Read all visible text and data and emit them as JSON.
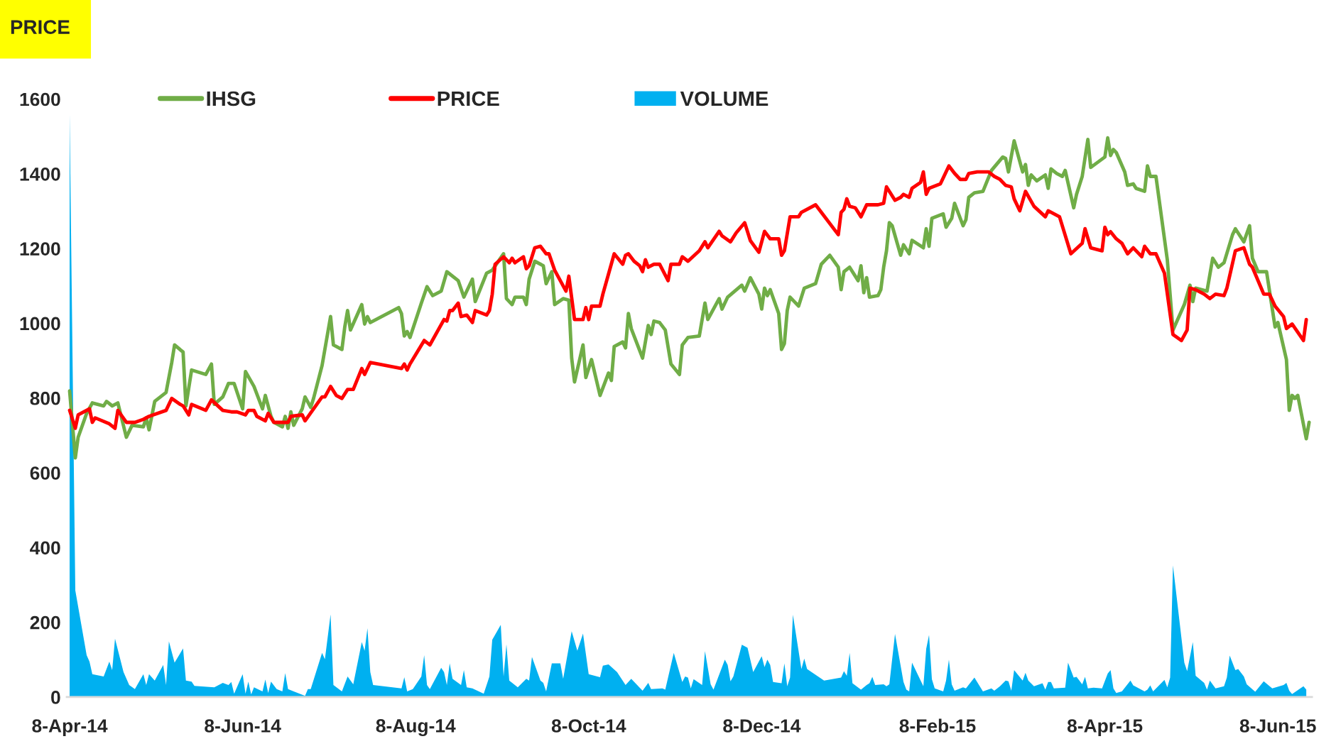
{
  "chart_data": {
    "type": "line",
    "title": "PRICE",
    "xlim": [
      "2014-04-07",
      "2015-06-20"
    ],
    "xticks": [
      {
        "value": "2014-04-08",
        "label": "8-Apr-14"
      },
      {
        "value": "2014-06-08",
        "label": "8-Jun-14"
      },
      {
        "value": "2014-08-08",
        "label": "8-Aug-14"
      },
      {
        "value": "2014-10-08",
        "label": "8-Oct-14"
      },
      {
        "value": "2014-12-08",
        "label": "8-Dec-14"
      },
      {
        "value": "2015-02-08",
        "label": "8-Feb-15"
      },
      {
        "value": "2015-04-08",
        "label": "8-Apr-15"
      },
      {
        "value": "2015-06-08",
        "label": "8-Jun-15"
      }
    ],
    "ylim": [
      0,
      1600
    ],
    "yticks": [
      0,
      200,
      400,
      600,
      800,
      1000,
      1200,
      1400,
      1600
    ],
    "grid": false,
    "legend": "top left",
    "series": [
      {
        "name": "IHSG",
        "color": "#70ad47",
        "x": [
          "2014-04-08",
          "2014-04-10",
          "2014-04-11",
          "2014-04-14",
          "2014-04-16",
          "2014-04-20",
          "2014-04-21",
          "2014-04-23",
          "2014-04-25",
          "2014-04-28",
          "2014-04-30",
          "2014-05-04",
          "2014-05-05",
          "2014-05-06",
          "2014-05-08",
          "2014-05-12",
          "2014-05-14",
          "2014-05-15",
          "2014-05-18",
          "2014-05-19",
          "2014-05-21",
          "2014-05-26",
          "2014-05-28",
          "2014-05-29",
          "2014-06-01",
          "2014-06-03",
          "2014-06-05",
          "2014-06-08",
          "2014-06-09",
          "2014-06-12",
          "2014-06-15",
          "2014-06-16",
          "2014-06-18",
          "2014-06-19",
          "2014-06-22",
          "2014-06-23",
          "2014-06-24",
          "2014-06-25",
          "2014-06-26",
          "2014-06-29",
          "2014-06-30",
          "2014-07-02",
          "2014-07-03",
          "2014-07-06",
          "2014-07-09",
          "2014-07-10",
          "2014-07-13",
          "2014-07-14",
          "2014-07-15",
          "2014-07-16",
          "2014-07-20",
          "2014-07-21",
          "2014-07-22",
          "2014-07-23",
          "2014-08-02",
          "2014-08-03",
          "2014-08-04",
          "2014-08-05",
          "2014-08-06",
          "2014-08-10",
          "2014-08-12",
          "2014-08-14",
          "2014-08-17",
          "2014-08-19",
          "2014-08-23",
          "2014-08-25",
          "2014-08-28",
          "2014-08-29",
          "2014-09-02",
          "2014-09-04",
          "2014-09-08",
          "2014-09-09",
          "2014-09-11",
          "2014-09-12",
          "2014-09-15",
          "2014-09-16",
          "2014-09-17",
          "2014-09-19",
          "2014-09-22",
          "2014-09-23",
          "2014-09-25",
          "2014-09-26",
          "2014-09-29",
          "2014-10-01",
          "2014-10-02",
          "2014-10-03",
          "2014-10-06",
          "2014-10-07",
          "2014-10-09",
          "2014-10-12",
          "2014-10-15",
          "2014-10-16",
          "2014-10-17",
          "2014-10-20",
          "2014-10-21",
          "2014-10-22",
          "2014-10-23",
          "2014-10-27",
          "2014-10-29",
          "2014-10-30",
          "2014-10-31",
          "2014-11-02",
          "2014-11-04",
          "2014-11-06",
          "2014-11-09",
          "2014-11-10",
          "2014-11-12",
          "2014-11-16",
          "2014-11-18",
          "2014-11-19",
          "2014-11-23",
          "2014-11-24",
          "2014-11-26",
          "2014-12-01",
          "2014-12-02",
          "2014-12-04",
          "2014-12-07",
          "2014-12-08",
          "2014-12-09",
          "2014-12-10",
          "2014-12-11",
          "2014-12-14",
          "2014-12-15",
          "2014-12-16",
          "2014-12-17",
          "2014-12-18",
          "2014-12-21",
          "2014-12-23",
          "2014-12-27",
          "2014-12-29",
          "2015-01-01",
          "2015-01-04",
          "2015-01-05",
          "2015-01-06",
          "2015-01-08",
          "2015-01-11",
          "2015-01-12",
          "2015-01-13",
          "2015-01-14",
          "2015-01-15",
          "2015-01-18",
          "2015-01-19",
          "2015-01-20",
          "2015-01-21",
          "2015-01-22",
          "2015-01-23",
          "2015-01-26",
          "2015-01-27",
          "2015-01-29",
          "2015-01-30",
          "2015-02-03",
          "2015-02-04",
          "2015-02-05",
          "2015-02-06",
          "2015-02-10",
          "2015-02-11",
          "2015-02-13",
          "2015-02-14",
          "2015-02-17",
          "2015-02-18",
          "2015-02-19",
          "2015-02-21",
          "2015-02-24",
          "2015-02-27",
          "2015-03-03",
          "2015-03-04",
          "2015-03-05",
          "2015-03-07",
          "2015-03-10",
          "2015-03-11",
          "2015-03-12",
          "2015-03-13",
          "2015-03-15",
          "2015-03-18",
          "2015-03-19",
          "2015-03-20",
          "2015-03-22",
          "2015-03-24",
          "2015-03-25",
          "2015-03-28",
          "2015-03-29",
          "2015-03-31",
          "2015-04-02",
          "2015-04-03",
          "2015-04-08",
          "2015-04-09",
          "2015-04-10",
          "2015-04-11",
          "2015-04-12",
          "2015-04-15",
          "2015-04-16",
          "2015-04-18",
          "2015-04-19",
          "2015-04-22",
          "2015-04-23",
          "2015-04-24",
          "2015-04-26",
          "2015-04-30",
          "2015-05-02",
          "2015-05-06",
          "2015-05-08",
          "2015-05-09",
          "2015-05-10",
          "2015-05-14",
          "2015-05-16",
          "2015-05-18",
          "2015-05-20",
          "2015-05-23",
          "2015-05-24",
          "2015-05-27",
          "2015-05-29",
          "2015-05-30",
          "2015-06-01",
          "2015-06-04",
          "2015-06-07",
          "2015-06-08",
          "2015-06-11",
          "2015-06-12",
          "2015-06-13",
          "2015-06-14",
          "2015-06-15",
          "2015-06-18",
          "2015-06-19"
        ],
        "values": [
          819,
          640,
          695,
          759,
          787,
          779,
          791,
          779,
          787,
          695,
          727,
          723,
          747,
          715,
          791,
          815,
          895,
          942,
          923,
          779,
          875,
          863,
          891,
          783,
          803,
          839,
          839,
          771,
          871,
          831,
          771,
          807,
          751,
          735,
          723,
          751,
          719,
          763,
          727,
          771,
          803,
          775,
          799,
          887,
          1018,
          942,
          930,
          990,
          1034,
          982,
          1050,
          998,
          1018,
          1002,
          1042,
          1026,
          966,
          978,
          962,
          1054,
          1098,
          1074,
          1086,
          1138,
          1114,
          1070,
          1118,
          1058,
          1134,
          1142,
          1186,
          1066,
          1050,
          1070,
          1070,
          1050,
          1118,
          1166,
          1154,
          1106,
          1138,
          1050,
          1066,
          1062,
          907,
          843,
          942,
          855,
          903,
          807,
          867,
          847,
          938,
          950,
          934,
          1026,
          986,
          907,
          994,
          970,
          1006,
          1002,
          982,
          891,
          863,
          942,
          962,
          966,
          1054,
          1010,
          1066,
          1038,
          1070,
          1102,
          1086,
          1122,
          1078,
          1038,
          1094,
          1074,
          1090,
          1026,
          930,
          946,
          1034,
          1070,
          1046,
          1094,
          1106,
          1158,
          1182,
          1150,
          1090,
          1138,
          1150,
          1114,
          1154,
          1082,
          1122,
          1070,
          1074,
          1090,
          1150,
          1194,
          1269,
          1261,
          1182,
          1210,
          1186,
          1222,
          1202,
          1253,
          1206,
          1281,
          1293,
          1257,
          1281,
          1321,
          1261,
          1277,
          1337,
          1349,
          1353,
          1409,
          1445,
          1441,
          1405,
          1488,
          1405,
          1425,
          1369,
          1397,
          1381,
          1397,
          1361,
          1413,
          1401,
          1393,
          1409,
          1309,
          1345,
          1393,
          1492,
          1417,
          1445,
          1496,
          1449,
          1465,
          1457,
          1405,
          1369,
          1373,
          1361,
          1353,
          1421,
          1393,
          1393,
          1170,
          982,
          1050,
          1102,
          1058,
          1094,
          1086,
          1174,
          1150,
          1162,
          1237,
          1253,
          1218,
          1261,
          1174,
          1138,
          1138,
          990,
          1002,
          903,
          767,
          807,
          799,
          807,
          691,
          735
        ]
      },
      {
        "name": "PRICE",
        "color": "#ff0000",
        "x": [
          "2014-04-08",
          "2014-04-10",
          "2014-04-11",
          "2014-04-15",
          "2014-04-16",
          "2014-04-17",
          "2014-04-22",
          "2014-04-24",
          "2014-04-25",
          "2014-04-28",
          "2014-05-01",
          "2014-05-04",
          "2014-05-06",
          "2014-05-12",
          "2014-05-14",
          "2014-05-17",
          "2014-05-18",
          "2014-05-20",
          "2014-05-21",
          "2014-05-26",
          "2014-05-28",
          "2014-06-01",
          "2014-06-04",
          "2014-06-06",
          "2014-06-09",
          "2014-06-10",
          "2014-06-12",
          "2014-06-13",
          "2014-06-16",
          "2014-06-17",
          "2014-06-19",
          "2014-06-24",
          "2014-06-25",
          "2014-06-29",
          "2014-06-30",
          "2014-07-06",
          "2014-07-07",
          "2014-07-09",
          "2014-07-11",
          "2014-07-13",
          "2014-07-15",
          "2014-07-17",
          "2014-07-20",
          "2014-07-21",
          "2014-07-23",
          "2014-08-03",
          "2014-08-04",
          "2014-08-05",
          "2014-08-06",
          "2014-08-11",
          "2014-08-13",
          "2014-08-18",
          "2014-08-19",
          "2014-08-20",
          "2014-08-21",
          "2014-08-23",
          "2014-08-24",
          "2014-08-26",
          "2014-08-28",
          "2014-08-29",
          "2014-09-02",
          "2014-09-03",
          "2014-09-04",
          "2014-09-05",
          "2014-09-08",
          "2014-09-10",
          "2014-09-11",
          "2014-09-12",
          "2014-09-15",
          "2014-09-16",
          "2014-09-17",
          "2014-09-19",
          "2014-09-21",
          "2014-09-23",
          "2014-09-24",
          "2014-09-26",
          "2014-09-30",
          "2014-10-01",
          "2014-10-03",
          "2014-10-06",
          "2014-10-07",
          "2014-10-08",
          "2014-10-09",
          "2014-10-12",
          "2014-10-13",
          "2014-10-17",
          "2014-10-20",
          "2014-10-21",
          "2014-10-22",
          "2014-10-24",
          "2014-10-26",
          "2014-10-27",
          "2014-10-28",
          "2014-10-29",
          "2014-10-31",
          "2014-11-02",
          "2014-11-05",
          "2014-11-06",
          "2014-11-09",
          "2014-11-10",
          "2014-11-12",
          "2014-11-16",
          "2014-11-18",
          "2014-11-19",
          "2014-11-23",
          "2014-11-24",
          "2014-11-27",
          "2014-11-29",
          "2014-12-02",
          "2014-12-04",
          "2014-12-07",
          "2014-12-09",
          "2014-12-11",
          "2014-12-14",
          "2014-12-15",
          "2014-12-16",
          "2014-12-18",
          "2014-12-21",
          "2014-12-22",
          "2014-12-27",
          "2014-12-29",
          "2015-01-04",
          "2015-01-05",
          "2015-01-06",
          "2015-01-07",
          "2015-01-08",
          "2015-01-10",
          "2015-01-12",
          "2015-01-14",
          "2015-01-18",
          "2015-01-20",
          "2015-01-21",
          "2015-01-24",
          "2015-01-26",
          "2015-01-27",
          "2015-01-29",
          "2015-01-30",
          "2015-02-02",
          "2015-02-03",
          "2015-02-04",
          "2015-02-05",
          "2015-02-09",
          "2015-02-12",
          "2015-02-14",
          "2015-02-16",
          "2015-02-18",
          "2015-02-19",
          "2015-02-22",
          "2015-02-26",
          "2015-02-28",
          "2015-03-02",
          "2015-03-04",
          "2015-03-06",
          "2015-03-07",
          "2015-03-09",
          "2015-03-11",
          "2015-03-14",
          "2015-03-18",
          "2015-03-19",
          "2015-03-23",
          "2015-03-27",
          "2015-03-31",
          "2015-04-01",
          "2015-04-03",
          "2015-04-07",
          "2015-04-08",
          "2015-04-09",
          "2015-04-10",
          "2015-04-12",
          "2015-04-14",
          "2015-04-16",
          "2015-04-18",
          "2015-04-21",
          "2015-04-22",
          "2015-04-24",
          "2015-04-26",
          "2015-04-29",
          "2015-05-02",
          "2015-05-05",
          "2015-05-07",
          "2015-05-08",
          "2015-05-10",
          "2015-05-13",
          "2015-05-15",
          "2015-05-17",
          "2015-05-20",
          "2015-05-21",
          "2015-05-24",
          "2015-05-27",
          "2015-05-29",
          "2015-05-30",
          "2015-06-03",
          "2015-06-05",
          "2015-06-07",
          "2015-06-10",
          "2015-06-11",
          "2015-06-13",
          "2015-06-17",
          "2015-06-18"
        ],
        "values": [
          767,
          719,
          755,
          771,
          735,
          747,
          731,
          719,
          767,
          735,
          735,
          743,
          751,
          767,
          799,
          783,
          779,
          755,
          783,
          767,
          795,
          767,
          763,
          763,
          755,
          767,
          767,
          751,
          739,
          759,
          735,
          735,
          751,
          755,
          739,
          803,
          803,
          831,
          807,
          799,
          823,
          823,
          879,
          863,
          895,
          879,
          891,
          875,
          891,
          954,
          942,
          1010,
          1006,
          1034,
          1034,
          1054,
          1018,
          1022,
          1002,
          1034,
          1022,
          1034,
          1078,
          1158,
          1178,
          1162,
          1174,
          1162,
          1178,
          1146,
          1154,
          1202,
          1206,
          1186,
          1186,
          1142,
          1086,
          1126,
          1010,
          1010,
          1042,
          1010,
          1046,
          1046,
          1078,
          1186,
          1158,
          1182,
          1186,
          1166,
          1154,
          1138,
          1170,
          1150,
          1158,
          1158,
          1114,
          1158,
          1158,
          1178,
          1166,
          1194,
          1218,
          1202,
          1246,
          1234,
          1218,
          1242,
          1269,
          1221,
          1190,
          1246,
          1226,
          1226,
          1182,
          1194,
          1285,
          1285,
          1297,
          1317,
          1297,
          1237,
          1297,
          1305,
          1333,
          1313,
          1309,
          1285,
          1317,
          1317,
          1321,
          1365,
          1329,
          1337,
          1345,
          1337,
          1361,
          1377,
          1405,
          1345,
          1361,
          1373,
          1421,
          1401,
          1385,
          1385,
          1401,
          1405,
          1405,
          1393,
          1385,
          1369,
          1365,
          1333,
          1301,
          1353,
          1313,
          1285,
          1301,
          1285,
          1186,
          1214,
          1253,
          1202,
          1194,
          1257,
          1237,
          1245,
          1226,
          1214,
          1186,
          1202,
          1178,
          1206,
          1186,
          1186,
          1134,
          970,
          954,
          982,
          1094,
          1090,
          1078,
          1066,
          1078,
          1074,
          1094,
          1194,
          1202,
          1158,
          1150,
          1078,
          1078,
          1046,
          1018,
          986,
          998,
          954,
          1010
        ]
      },
      {
        "name": "VOLUME",
        "color": "#00b0f0",
        "type": "area",
        "x": [
          "2014-04-08",
          "2014-04-10",
          "2014-04-14",
          "2014-04-15",
          "2014-04-16",
          "2014-04-20",
          "2014-04-22",
          "2014-04-23",
          "2014-04-24",
          "2014-04-27",
          "2014-04-29",
          "2014-05-01",
          "2014-05-04",
          "2014-05-05",
          "2014-05-06",
          "2014-05-08",
          "2014-05-11",
          "2014-05-12",
          "2014-05-13",
          "2014-05-15",
          "2014-05-18",
          "2014-05-19",
          "2014-05-21",
          "2014-05-22",
          "2014-05-29",
          "2014-06-01",
          "2014-06-03",
          "2014-06-04",
          "2014-06-05",
          "2014-06-08",
          "2014-06-09",
          "2014-06-10",
          "2014-06-11",
          "2014-06-12",
          "2014-06-15",
          "2014-06-16",
          "2014-06-17",
          "2014-06-18",
          "2014-06-20",
          "2014-06-22",
          "2014-06-23",
          "2014-06-24",
          "2014-06-26",
          "2014-06-30",
          "2014-07-01",
          "2014-07-02",
          "2014-07-06",
          "2014-07-07",
          "2014-07-09",
          "2014-07-10",
          "2014-07-13",
          "2014-07-15",
          "2014-07-17",
          "2014-07-20",
          "2014-07-21",
          "2014-07-22",
          "2014-07-23",
          "2014-07-24",
          "2014-08-03",
          "2014-08-04",
          "2014-08-05",
          "2014-08-07",
          "2014-08-10",
          "2014-08-11",
          "2014-08-12",
          "2014-08-13",
          "2014-08-17",
          "2014-08-18",
          "2014-08-19",
          "2014-08-20",
          "2014-08-21",
          "2014-08-24",
          "2014-08-25",
          "2014-08-26",
          "2014-08-28",
          "2014-09-01",
          "2014-09-03",
          "2014-09-04",
          "2014-09-07",
          "2014-09-08",
          "2014-09-09",
          "2014-09-10",
          "2014-09-13",
          "2014-09-16",
          "2014-09-17",
          "2014-09-18",
          "2014-09-21",
          "2014-09-22",
          "2014-09-23",
          "2014-09-25",
          "2014-09-28",
          "2014-09-29",
          "2014-10-02",
          "2014-10-04",
          "2014-10-06",
          "2014-10-08",
          "2014-10-12",
          "2014-10-13",
          "2014-10-15",
          "2014-10-18",
          "2014-10-21",
          "2014-10-23",
          "2014-10-27",
          "2014-10-29",
          "2014-10-30",
          "2014-11-03",
          "2014-11-04",
          "2014-11-07",
          "2014-11-10",
          "2014-11-11",
          "2014-11-12",
          "2014-11-13",
          "2014-11-14",
          "2014-11-17",
          "2014-11-18",
          "2014-11-20",
          "2014-11-21",
          "2014-11-25",
          "2014-11-26",
          "2014-11-27",
          "2014-11-28",
          "2014-12-01",
          "2014-12-03",
          "2014-12-05",
          "2014-12-08",
          "2014-12-09",
          "2014-12-10",
          "2014-12-11",
          "2014-12-12",
          "2014-12-15",
          "2014-12-16",
          "2014-12-17",
          "2014-12-18",
          "2014-12-19",
          "2014-12-22",
          "2014-12-23",
          "2014-12-24",
          "2014-12-30",
          "2015-01-05",
          "2015-01-06",
          "2015-01-07",
          "2015-01-08",
          "2015-01-09",
          "2015-01-12",
          "2015-01-14",
          "2015-01-15",
          "2015-01-16",
          "2015-01-17",
          "2015-01-20",
          "2015-01-21",
          "2015-01-22",
          "2015-01-24",
          "2015-01-27",
          "2015-01-28",
          "2015-01-29",
          "2015-01-30",
          "2015-02-03",
          "2015-02-04",
          "2015-02-05",
          "2015-02-06",
          "2015-02-07",
          "2015-02-10",
          "2015-02-11",
          "2015-02-12",
          "2015-02-13",
          "2015-02-14",
          "2015-02-17",
          "2015-02-18",
          "2015-02-21",
          "2015-02-24",
          "2015-02-27",
          "2015-02-28",
          "2015-03-02",
          "2015-03-04",
          "2015-03-05",
          "2015-03-06",
          "2015-03-07",
          "2015-03-10",
          "2015-03-11",
          "2015-03-12",
          "2015-03-14",
          "2015-03-17",
          "2015-03-18",
          "2015-03-19",
          "2015-03-20",
          "2015-03-21",
          "2015-03-25",
          "2015-03-26",
          "2015-03-28",
          "2015-03-29",
          "2015-03-31",
          "2015-04-01",
          "2015-04-02",
          "2015-04-04",
          "2015-04-07",
          "2015-04-09",
          "2015-04-10",
          "2015-04-11",
          "2015-04-12",
          "2015-04-14",
          "2015-04-17",
          "2015-04-18",
          "2015-04-22",
          "2015-04-23",
          "2015-04-24",
          "2015-04-25",
          "2015-04-29",
          "2015-04-30",
          "2015-05-01",
          "2015-05-02",
          "2015-05-06",
          "2015-05-07",
          "2015-05-09",
          "2015-05-10",
          "2015-05-13",
          "2015-05-14",
          "2015-05-15",
          "2015-05-17",
          "2015-05-20",
          "2015-05-21",
          "2015-05-22",
          "2015-05-24",
          "2015-05-25",
          "2015-05-27",
          "2015-05-28",
          "2015-05-31",
          "2015-06-03",
          "2015-06-06",
          "2015-06-10",
          "2015-06-11",
          "2015-06-12",
          "2015-06-13",
          "2015-06-17",
          "2015-06-18"
        ],
        "values": [
          1560,
          285,
          112,
          95,
          61,
          55,
          95,
          72,
          156,
          67,
          32,
          21,
          61,
          32,
          61,
          44,
          86,
          32,
          149,
          92,
          130,
          44,
          41,
          30,
          26,
          38,
          32,
          40,
          9,
          61,
          9,
          41,
          7,
          26,
          15,
          47,
          11,
          41,
          21,
          15,
          64,
          21,
          15,
          3,
          21,
          21,
          118,
          101,
          221,
          32,
          15,
          55,
          34,
          147,
          124,
          184,
          67,
          32,
          23,
          53,
          15,
          21,
          55,
          112,
          32,
          21,
          78,
          67,
          32,
          90,
          49,
          32,
          72,
          26,
          23,
          9,
          55,
          153,
          193,
          55,
          141,
          44,
          26,
          49,
          44,
          107,
          44,
          38,
          15,
          90,
          90,
          49,
          176,
          124,
          170,
          61,
          53,
          84,
          87,
          67,
          32,
          49,
          17,
          38,
          21,
          23,
          20,
          118,
          40,
          55,
          52,
          23,
          48,
          32,
          123,
          34,
          20,
          100,
          86,
          42,
          55,
          140,
          132,
          67,
          109,
          80,
          100,
          86,
          40,
          37,
          90,
          29,
          52,
          220,
          75,
          103,
          75,
          44,
          52,
          69,
          57,
          118,
          37,
          20,
          32,
          37,
          54,
          32,
          34,
          29,
          34,
          169,
          40,
          20,
          15,
          92,
          29,
          129,
          166,
          48,
          23,
          15,
          44,
          100,
          34,
          17,
          26,
          23,
          52,
          15,
          23,
          17,
          29,
          44,
          42,
          17,
          72,
          44,
          65,
          44,
          29,
          37,
          20,
          40,
          40,
          23,
          25,
          92,
          52,
          54,
          34,
          54,
          23,
          25,
          23,
          63,
          72,
          23,
          11,
          15,
          44,
          31,
          15,
          20,
          31,
          15,
          46,
          26,
          52,
          352,
          92,
          69,
          147,
          57,
          38,
          20,
          44,
          23,
          29,
          52,
          111,
          72,
          75,
          55,
          34,
          14,
          42,
          23,
          32,
          38,
          17,
          8,
          29,
          20
        ]
      }
    ]
  }
}
